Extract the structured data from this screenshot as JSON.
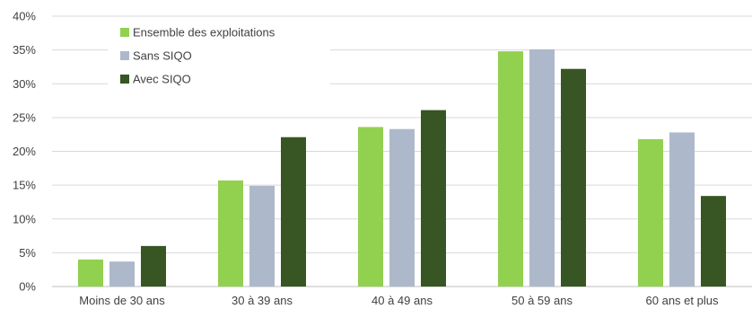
{
  "chart_data": {
    "type": "bar",
    "categories": [
      "Moins de 30 ans",
      "30 à 39 ans",
      "40 à 49 ans",
      "50 à 59 ans",
      "60 ans et plus"
    ],
    "series": [
      {
        "name": "Ensemble des exploitations",
        "color": "#92d050",
        "values": [
          4.0,
          15.7,
          23.6,
          34.8,
          21.8
        ]
      },
      {
        "name": "Sans SIQO",
        "color": "#adb9ca",
        "values": [
          3.7,
          14.9,
          23.3,
          35.1,
          22.8
        ]
      },
      {
        "name": "Avec SIQO",
        "color": "#375623",
        "values": [
          6.0,
          22.1,
          26.1,
          32.2,
          13.4
        ]
      }
    ],
    "y_ticks": [
      "0%",
      "5%",
      "10%",
      "15%",
      "20%",
      "25%",
      "30%",
      "35%",
      "40%"
    ],
    "ylim": [
      0,
      40
    ],
    "grid": true,
    "legend_position": "top-left",
    "title": "",
    "xlabel": "",
    "ylabel": ""
  }
}
